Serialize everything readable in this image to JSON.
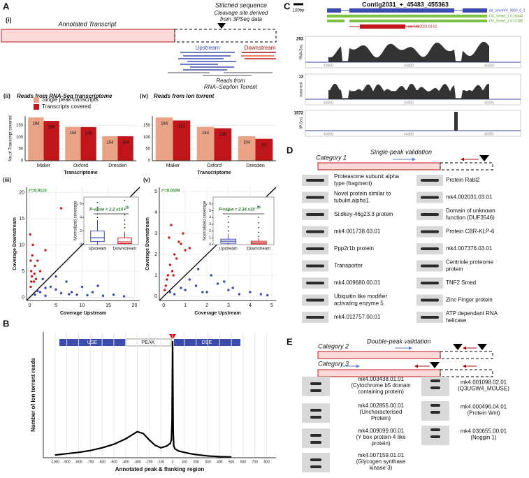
{
  "chart_data": [
    {
      "type": "bar",
      "label": "(ii)",
      "title": "Reads from RNA-Seq transcriptome",
      "categories": [
        "Maker",
        "Oxford",
        "Dresden"
      ],
      "series": [
        {
          "name": "Single peak transcripts",
          "color": "#e8a285",
          "values": [
            184,
            144,
            104
          ]
        },
        {
          "name": "Transcripts covered",
          "color": "#c0151b",
          "values": [
            169,
            143,
            104
          ]
        }
      ],
      "xlabel": "Transcriptome",
      "ylabel": "No.of Transcript covered",
      "ylim": [
        0,
        190
      ],
      "yticks": [
        0,
        50,
        100,
        150
      ]
    },
    {
      "type": "bar",
      "label": "(iv)",
      "title": "Reads from Ion torrent",
      "categories": [
        "Maker",
        "Oxford",
        "Dresden"
      ],
      "series": [
        {
          "color": "#e8a285",
          "values": [
            184,
            144,
            104
          ]
        },
        {
          "color": "#c0151b",
          "values": [
            171,
            138,
            93
          ]
        }
      ],
      "xlabel": "Transcriptome",
      "ylim": [
        0,
        190
      ],
      "yticks": [
        0,
        50,
        100,
        150
      ]
    },
    {
      "type": "scatter",
      "label": "(iii)",
      "annotation": "r²=0.0110",
      "xlabel": "Coverage Upstream",
      "ylabel": "Coverage Downstream",
      "xlim": [
        -0.6,
        21
      ],
      "ylim": [
        -0.6,
        21
      ],
      "xticks": [
        0,
        5,
        10,
        15,
        20
      ],
      "yticks": [
        0,
        5,
        10,
        15,
        20
      ],
      "series": [
        {
          "color": "#3b4bb0",
          "x": [
            1,
            2,
            3,
            4,
            5,
            6,
            7,
            8,
            9,
            10,
            12,
            14,
            16,
            18,
            2.5,
            3,
            5,
            11,
            1.5,
            7.5,
            13
          ],
          "values": [
            0.5,
            1,
            0.3,
            2,
            1.5,
            0.8,
            3,
            1,
            0.5,
            2,
            1,
            0.3,
            0.5,
            0.2,
            3.5,
            1.8,
            4,
            0.4,
            1.2,
            0.6,
            2.2
          ]
        },
        {
          "color": "#cc1f1f",
          "x": [
            0.2,
            0.3,
            0.5,
            0.8,
            1,
            0.1,
            0.4,
            1.5,
            2,
            0.6,
            3,
            6,
            0.2,
            1.2,
            0.3,
            0.9
          ],
          "values": [
            2,
            5,
            8,
            3,
            6,
            12,
            4,
            7,
            5,
            10,
            9,
            17,
            7,
            3.5,
            3,
            4.5
          ]
        }
      ],
      "inset": {
        "type": "box",
        "categories": [
          "Upstream",
          "Downstream"
        ],
        "ylabel": "Normalized coverage",
        "ylim": [
          0,
          7
        ],
        "yticks": [
          0,
          2,
          4,
          6
        ],
        "pvalue": "P-value < 2.2 x10",
        "pvalue_exp": "-16",
        "boxes": [
          {
            "whislo": 0,
            "q1": 0.45,
            "med": 1,
            "q3": 2,
            "whishi": 3.6,
            "color": "#3b4bb0",
            "outliers": [
              4,
              4.5,
              5,
              5.5,
              6.2
            ]
          },
          {
            "whislo": 0,
            "q1": 0.15,
            "med": 0.4,
            "q3": 1,
            "whishi": 1.9,
            "color": "#cc1f1f",
            "outliers": [
              2.5,
              3,
              3.6,
              4.4,
              5.2,
              6.5
            ]
          }
        ]
      }
    },
    {
      "type": "scatter",
      "label": "(v)",
      "annotation": "r²=0.0109",
      "xlabel": "Coverage Upstream",
      "ylabel": "Coverage Downstream",
      "xlim": [
        -0.2,
        5.2
      ],
      "ylim": [
        -0.2,
        5.2
      ],
      "xticks": [
        0,
        1,
        2,
        3,
        4,
        5
      ],
      "yticks": [
        0,
        1,
        2,
        3,
        4,
        5
      ],
      "series": [
        {
          "color": "#3b4bb0",
          "x": [
            0.5,
            1,
            1.5,
            2,
            2.5,
            3,
            3.5,
            4,
            4.5,
            1.2,
            2.2,
            3.2,
            0.8,
            1.8,
            2.8,
            4.8,
            0.3,
            1.6
          ],
          "values": [
            0.1,
            0.3,
            0.5,
            0.2,
            0.6,
            0.3,
            0.1,
            0.2,
            0.1,
            0.8,
            1,
            0.4,
            0.4,
            0.2,
            0.7,
            0.05,
            0.2,
            1.3
          ]
        },
        {
          "color": "#cc1f1f",
          "x": [
            0.1,
            0.2,
            0.3,
            0.4,
            0.5,
            0.6,
            0.8,
            1,
            0.15,
            0.25,
            0.35,
            0.7,
            1.2,
            0.45,
            0.05,
            0.9
          ],
          "values": [
            0.5,
            1,
            1.5,
            1.2,
            2,
            1.8,
            2.5,
            2.2,
            0.8,
            2.8,
            3.4,
            2.6,
            2.3,
            1,
            0.3,
            3
          ]
        }
      ],
      "inset": {
        "type": "box",
        "categories": [
          "Upstream",
          "Downstream"
        ],
        "ylabel": "Normalized coverage",
        "ylim": [
          0,
          7
        ],
        "yticks": [
          0,
          1,
          2,
          3,
          4,
          5,
          6
        ],
        "pvalue": "P-value < 2.34 x10",
        "pvalue_exp": "-16",
        "boxes": [
          {
            "whislo": 0,
            "q1": 0.2,
            "med": 0.5,
            "q3": 0.8,
            "whishi": 1.6,
            "color": "#3b4bb0",
            "outliers": [
              2,
              2.6,
              3.3,
              4.1,
              5
            ]
          },
          {
            "whislo": 0,
            "q1": 0.1,
            "med": 0.25,
            "q3": 0.5,
            "whishi": 0.9,
            "color": "#cc1f1f",
            "outliers": [
              1.2,
              1.8,
              2.5,
              3.2,
              4,
              5.6
            ]
          }
        ]
      }
    },
    {
      "type": "line",
      "xlabel": "Annotated peak & flanking region",
      "ylabel": "Number of Ion torrent reads",
      "color": "#000000",
      "x": [
        -1000,
        -900,
        -800,
        -700,
        -600,
        -500,
        -400,
        -350,
        -300,
        -250,
        -200,
        -150,
        -100,
        -50,
        -20,
        -10,
        -5,
        0,
        5,
        10,
        20,
        50,
        100,
        150,
        200,
        300,
        400,
        500
      ],
      "values": [
        30,
        45,
        60,
        80,
        110,
        150,
        210,
        250,
        290,
        270,
        200,
        140,
        110,
        130,
        160,
        200,
        400,
        1300,
        300,
        130,
        100,
        75,
        60,
        45,
        35,
        20,
        12,
        8
      ],
      "xlim": [
        -1100,
        880
      ],
      "ylim": [
        0,
        1400
      ],
      "xticks": [
        -1000,
        -900,
        -800,
        -700,
        -600,
        -500,
        -400,
        -300,
        -200,
        -100,
        0,
        100,
        200,
        300,
        400,
        500,
        600,
        700,
        800
      ],
      "grid": true
    }
  ],
  "panel_a": {
    "letter": "A",
    "step": "(i)",
    "annotated": "Annotated Transcript",
    "stitched": "Stitched sequence",
    "cleavage": [
      "Cleavage site derived",
      "from 3PSeq data"
    ],
    "upstream": "Upstream",
    "downstream": "Downstream",
    "reads": [
      "Reads from",
      "RNA–Seq/Ion Torrent"
    ]
  },
  "panel_b": {
    "letter": "B",
    "segments": [
      "USE",
      "PEAK",
      "DSE"
    ]
  },
  "panel_c": {
    "letter": "C",
    "title": "Contig2031_+_45483_455363",
    "scale": "100bp",
    "genes": [
      "dd_smedV4_3660_0_1",
      "OX_Smed_1.0.16344",
      "OX_Smed_1.0.13188",
      "mk4.002031.03.01"
    ],
    "coords": [
      "43000",
      "44000",
      "45000"
    ],
    "tracks": [
      {
        "name": "RNA-Seq",
        "max": 293
      },
      {
        "name": "Iontorrent",
        "max": 13
      },
      {
        "name": "3P-Seq",
        "max": 1572
      }
    ]
  },
  "panel_d": {
    "letter": "D",
    "category": "Category 1",
    "title": "Single-peak validation",
    "left": [
      [
        "Proteasome subunit alpha",
        "type (fragment)"
      ],
      [
        "Novel protein similar to",
        "tubulin,alpha1."
      ],
      [
        "Si:dkey-46g23.3 protein"
      ],
      [
        "mk4.001738.03.01"
      ],
      [
        "Ppp2r1b protein"
      ],
      [
        "Transporter"
      ],
      [
        "mk4.009680.00.01"
      ],
      [
        "Ubiquitin like modifier",
        "activating enzyme 5"
      ],
      [
        "mk4.012757.00.01"
      ]
    ],
    "right": [
      [
        "Protein Rabl2"
      ],
      [
        "mk4.002031.03.01"
      ],
      [
        "Domain of unknown",
        "function (DUF3546)"
      ],
      [
        "Protein CBR-KLP-6"
      ],
      [
        "mk4.007376.03.01"
      ],
      [
        "Centriole proteome",
        "protein"
      ],
      [
        "TNF2 Smed"
      ],
      [
        "Zinc Finger protein"
      ],
      [
        "ATP dependant RNA",
        "helicase"
      ]
    ]
  },
  "panel_e": {
    "letter": "E",
    "title": "Double-peak validation",
    "categories": [
      "Category 2",
      "Category 3"
    ],
    "left": [
      [
        "mk4.003438.01.01",
        "(Cytochrome b5 domain",
        "containing protein)"
      ],
      [
        "mk4.002855.00.01",
        "(Uncharacterised",
        "Protein)"
      ],
      [
        "mk4.009099.00.01",
        "(Y box protein-4 like",
        "protein)"
      ],
      [
        "mk4.007159.01.01",
        "(Glycogen synthase",
        "kinase 3)"
      ]
    ],
    "right": [
      [
        "mk4.001098.02.01",
        "(Q3UGW4_MOUSE)"
      ],
      [
        "mk4.000496.04.01",
        "(Protein Wnt)"
      ],
      [
        "mk4.030655.00.01",
        "(Noggin 1)"
      ]
    ]
  }
}
